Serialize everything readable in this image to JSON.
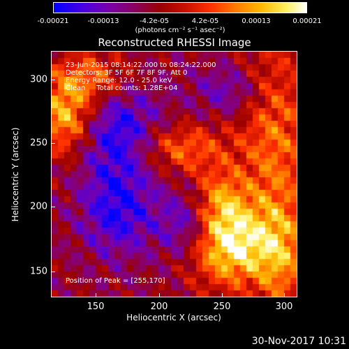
{
  "colorbar": {
    "ticks": [
      "-0.00021",
      "-0.00013",
      "-4.2e-05",
      "4.2e-05",
      "0.00013",
      "0.00021"
    ],
    "units": "(photons cm⁻² s⁻¹ asec⁻²)"
  },
  "chart_data": {
    "type": "heatmap",
    "title": "Reconstructed RHESSI Image",
    "xlabel": "Heliocentric X (arcsec)",
    "ylabel": "Heliocentric Y (arcsec)",
    "xlim": [
      117,
      307
    ],
    "ylim": [
      130,
      320
    ],
    "x_ticks": [
      "150",
      "200",
      "250",
      "300"
    ],
    "y_ticks": [
      "150",
      "200",
      "250",
      "300"
    ],
    "color_range": [
      -0.00021,
      0.00021
    ],
    "annotations": {
      "time": "23-Jun-2015 08:14:22.000 to 08:24:22.000",
      "detectors": "Detectors: 3F 5F 6F 7F 8F 9F, Att 0",
      "energy": "Energy Range: 12.0 - 25.0 keV",
      "clean": "Clean     Total counts: 1.28E+04",
      "peak": "Position of Peak = [255,170]"
    },
    "peak": [
      255,
      170
    ]
  },
  "footer": {
    "date": "30-Nov-2017 10:31"
  }
}
